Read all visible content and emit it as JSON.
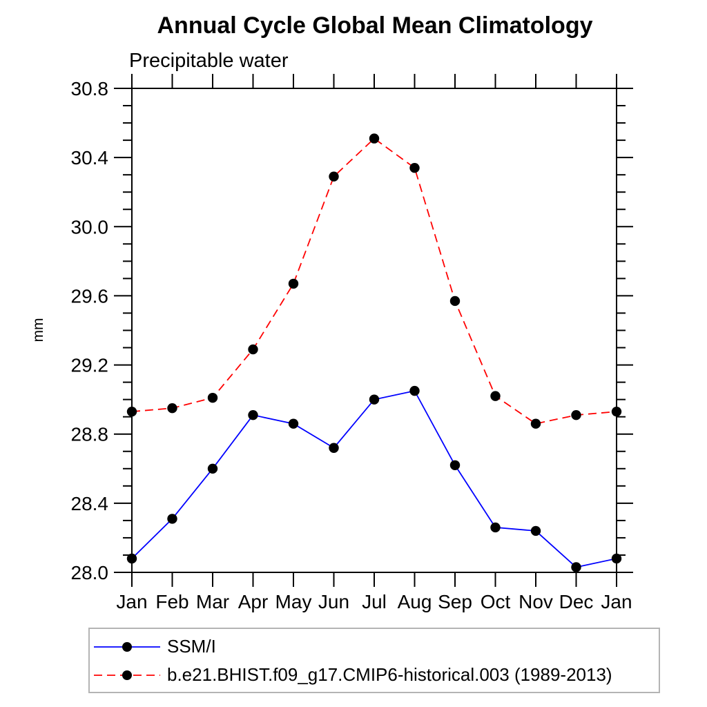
{
  "chart_data": {
    "type": "line",
    "title": "Annual Cycle Global Mean Climatology",
    "subtitle": "Precipitable water",
    "ylabel": "mm",
    "xlabel": "",
    "categories": [
      "Jan",
      "Feb",
      "Mar",
      "Apr",
      "May",
      "Jun",
      "Jul",
      "Aug",
      "Sep",
      "Oct",
      "Nov",
      "Dec",
      "Jan"
    ],
    "ylim": [
      28.0,
      30.8
    ],
    "y_major_ticks": [
      28.0,
      28.4,
      28.8,
      29.2,
      29.6,
      30.0,
      30.4,
      30.8
    ],
    "y_minor_step": 0.1,
    "grid": false,
    "legend_position": "bottom-left-box",
    "frame_color": "#000000",
    "series": [
      {
        "name": "SSM/I",
        "color": "#0000ff",
        "line_style": "solid",
        "marker": "circle",
        "marker_color": "#000000",
        "values": [
          28.08,
          28.31,
          28.6,
          28.91,
          28.86,
          28.72,
          29.0,
          29.05,
          28.62,
          28.26,
          28.24,
          28.03,
          28.08
        ]
      },
      {
        "name": "b.e21.BHIST.f09_g17.CMIP6-historical.003 (1989-2013)",
        "color": "#ff0000",
        "line_style": "dashed",
        "marker": "circle",
        "marker_color": "#000000",
        "values": [
          28.93,
          28.95,
          29.01,
          29.29,
          29.67,
          30.29,
          30.51,
          30.34,
          29.57,
          29.02,
          28.86,
          28.91,
          28.93
        ]
      }
    ]
  }
}
